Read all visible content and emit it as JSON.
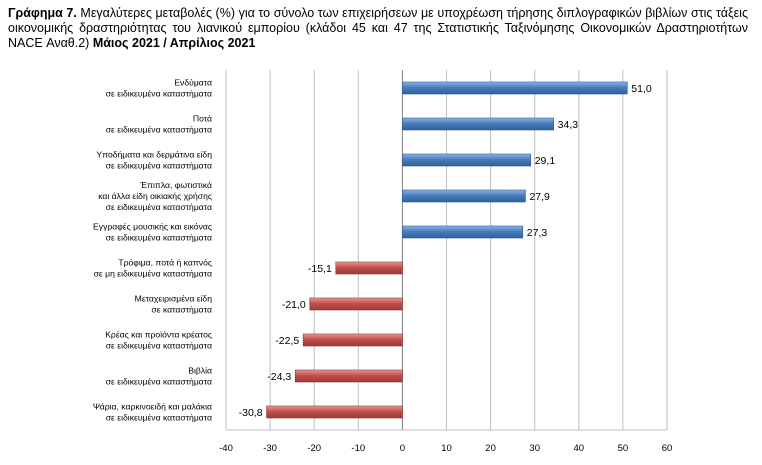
{
  "chart_data": {
    "type": "bar",
    "orientation": "horizontal",
    "title_prefix": "Γράφημα 7.",
    "title": "Μεγαλύτερες μεταβολές (%) για το σύνολο των επιχειρήσεων με υποχρέωση τήρησης διπλογραφικών βιβλίων στις τάξεις οικονομικής δραστηριότητας του λιανικού εμπορίου (κλάδοι 45 και 47 της Στατιστικής Ταξινόμησης Οικονομικών Δραστηριοτήτων NACE Αναθ.2)",
    "title_period": "Μάιος 2021 / Απρίλιος 2021",
    "categories": [
      [
        "Ενδύματα",
        "σε ειδικευμένα καταστήματα"
      ],
      [
        "Ποτά",
        "σε ειδικευμένα καταστήματα"
      ],
      [
        "Υποδήματα και δερμάτινα είδη",
        "σε ειδικευμένα καταστήματα"
      ],
      [
        "Έπιπλα, φωτιστικά",
        "και άλλα είδη οικιακής χρήσης",
        "σε ειδικευμένα καταστήματα"
      ],
      [
        "Εγγραφές μουσικής και εικόνας",
        "σε ειδικευμένα καταστήματα"
      ],
      [
        "Τρόφιμα, ποτά ή καπνός",
        "σε μη ειδικευμένα καταστήματα"
      ],
      [
        "Μεταχειρισμένα είδη",
        "σε καταστήματα"
      ],
      [
        "Κρέας και προϊόντα κρέατος",
        "σε ειδικευμένα καταστήματα"
      ],
      [
        "Βιβλία",
        "σε ειδικευμένα καταστήματα"
      ],
      [
        "Ψάρια, καρκινοειδή και μαλάκια",
        "σε ειδικευμένα καταστήματα"
      ]
    ],
    "values": [
      51.0,
      34.3,
      29.1,
      27.9,
      27.3,
      -15.1,
      -21.0,
      -22.5,
      -24.3,
      -30.8
    ],
    "value_labels": [
      "51,0",
      "34,3",
      "29,1",
      "27,9",
      "27,3",
      "-15,1",
      "-21,0",
      "-22,5",
      "-24,3",
      "-30,8"
    ],
    "xlim": [
      -40,
      60
    ],
    "xticks": [
      -40,
      -30,
      -20,
      -10,
      0,
      10,
      20,
      30,
      40,
      50,
      60
    ],
    "grid": true,
    "colors": {
      "positive": "#4a7ebb",
      "negative": "#c0504d",
      "grid": "#bfbfbf"
    }
  }
}
